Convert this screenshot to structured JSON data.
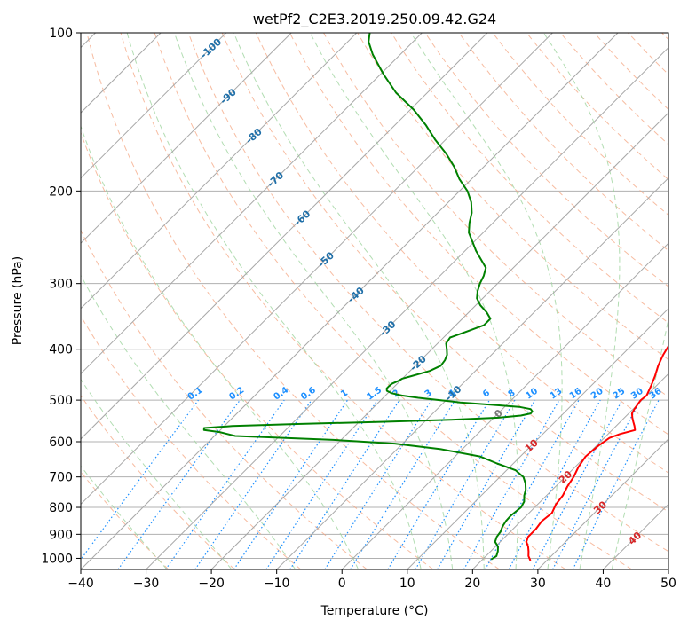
{
  "chart_data": {
    "type": "line",
    "subtype": "skew-t log-p diagram",
    "title": "wetPf2_C2E3.2019.250.09.42.G24",
    "xlabel": "Temperature (°C)",
    "ylabel": "Pressure (hPa)",
    "xlim": [
      -40,
      50
    ],
    "ylim": [
      1050,
      100
    ],
    "y_scale": "log",
    "x_ticks": [
      "−40",
      "−30",
      "−20",
      "−10",
      "0",
      "10",
      "20",
      "30",
      "40",
      "50"
    ],
    "y_ticks": [
      "100",
      "200",
      "300",
      "400",
      "500",
      "600",
      "700",
      "800",
      "900",
      "1000"
    ],
    "grid": true,
    "series": [
      {
        "color": "#ff0000",
        "pressure": [
          1010,
          990,
          970,
          950,
          930,
          910,
          880,
          850,
          820,
          790,
          760,
          730,
          700,
          670,
          640,
          610,
          590,
          580,
          570,
          560,
          550,
          540,
          530,
          520,
          510,
          500,
          490,
          470,
          450,
          430,
          410,
          390,
          370,
          350,
          330,
          310,
          290,
          270,
          250,
          230,
          210,
          190,
          175,
          160,
          150,
          140,
          130,
          120,
          112,
          105,
          100
        ],
        "temperature": [
          27.5,
          26.5,
          25.8,
          25.0,
          24.0,
          23.5,
          23.5,
          23.2,
          23.5,
          22.8,
          22.5,
          21.8,
          21.3,
          20.5,
          20.0,
          20.3,
          20.8,
          21.8,
          23.5,
          22.8,
          22.0,
          21.2,
          20.5,
          20.2,
          20.0,
          19.8,
          20.0,
          19.2,
          18.3,
          17.2,
          16.3,
          15.6,
          14.8,
          13.7,
          12.2,
          10.5,
          8.5,
          6.2,
          4.0,
          2.0,
          0.0,
          -2.0,
          -3.7,
          -5.3,
          -6.2,
          -7.6,
          -9.0,
          -10.7,
          -12.5,
          -14.2,
          -15.6
        ]
      },
      {
        "color": "#008000",
        "pressure": [
          1005,
          990,
          970,
          950,
          930,
          910,
          890,
          870,
          850,
          830,
          800,
          780,
          760,
          740,
          720,
          700,
          680,
          660,
          640,
          620,
          605,
          595,
          585,
          575,
          570,
          565,
          560,
          555,
          550,
          545,
          540,
          535,
          530,
          525,
          520,
          515,
          510,
          505,
          500,
          495,
          490,
          485,
          480,
          475,
          470,
          465,
          460,
          455,
          450,
          440,
          430,
          420,
          410,
          400,
          390,
          380,
          370,
          360,
          350,
          340,
          330,
          320,
          310,
          300,
          290,
          280,
          270,
          260,
          250,
          240,
          230,
          220,
          210,
          200,
          190,
          180,
          170,
          160,
          150,
          140,
          130,
          120,
          110,
          104,
          100
        ],
        "dewpoint": [
          21.3,
          21.6,
          21.1,
          20.4,
          19.2,
          18.7,
          18.5,
          18.0,
          17.7,
          17.6,
          17.9,
          17.5,
          16.6,
          15.9,
          14.9,
          13.6,
          11.4,
          7.5,
          3.8,
          -3.3,
          -11.2,
          -21.2,
          -36.8,
          -39.8,
          -42.5,
          -42.8,
          -38.8,
          -29.2,
          -16.7,
          -6.3,
          0.7,
          3.8,
          5.0,
          4.9,
          4.3,
          2.2,
          -2.5,
          -7.5,
          -11.0,
          -14.6,
          -17.5,
          -19.4,
          -20.5,
          -20.9,
          -20.9,
          -20.8,
          -20.3,
          -20.0,
          -19.0,
          -17.0,
          -16.1,
          -16.3,
          -16.8,
          -17.7,
          -18.7,
          -19.0,
          -17.3,
          -15.7,
          -15.7,
          -17.3,
          -19.3,
          -20.9,
          -21.9,
          -22.7,
          -23.3,
          -24.2,
          -26.2,
          -28.3,
          -30.2,
          -32.2,
          -33.6,
          -34.8,
          -36.5,
          -38.8,
          -41.8,
          -44.5,
          -47.7,
          -51.5,
          -55.2,
          -59.5,
          -64.8,
          -69.5,
          -74.2,
          -76.8,
          -78.0
        ]
      }
    ],
    "isotherms_c": [
      -170,
      -160,
      -150,
      -140,
      -130,
      -120,
      -110,
      -100,
      -90,
      -80,
      -70,
      -60,
      -50,
      -40,
      -30,
      -20,
      -10,
      0,
      10,
      20,
      30,
      40,
      50
    ],
    "dry_adiabat_theta_c": [
      -30,
      -20,
      -10,
      0,
      10,
      20,
      30,
      40,
      50,
      60,
      70,
      80,
      90,
      100,
      110,
      120,
      130,
      140,
      150,
      160,
      170,
      180,
      190,
      200
    ],
    "moist_adiabat_start_c": [
      -30,
      -20,
      -10,
      0,
      10,
      15,
      20,
      25,
      30,
      35,
      40
    ],
    "mixing_ratio_gkg": [
      0.1,
      0.2,
      0.4,
      0.6,
      1,
      1.5,
      2,
      3,
      4,
      6,
      8,
      10,
      13,
      16,
      20,
      25,
      30,
      36
    ],
    "isotherm_labels": [
      "-100",
      "-90",
      "-80",
      "-70",
      "-60",
      "-50",
      "-40",
      "-30",
      "-20",
      "-10",
      "0",
      "10",
      "20",
      "30",
      "40"
    ],
    "mixing_ratio_labels": [
      "0.1",
      "0.2",
      "0.4",
      "0.6",
      "1",
      "1.5",
      "2",
      "3",
      "4",
      "6",
      "8",
      "10",
      "13",
      "16",
      "20",
      "25",
      "30",
      "36"
    ],
    "colors": {
      "temperature": "#ff0000",
      "dewpoint": "#008000",
      "isotherm": "#a8a8a8",
      "dry_adiabat": "#f4a582",
      "moist_adiabat": "#9fd49f",
      "mixing_ratio": "#1e90ff",
      "isotherm_label_cold": "#1f6fa8",
      "isotherm_label_warm": "#d62728",
      "isotherm_label_zero": "#777777"
    }
  }
}
